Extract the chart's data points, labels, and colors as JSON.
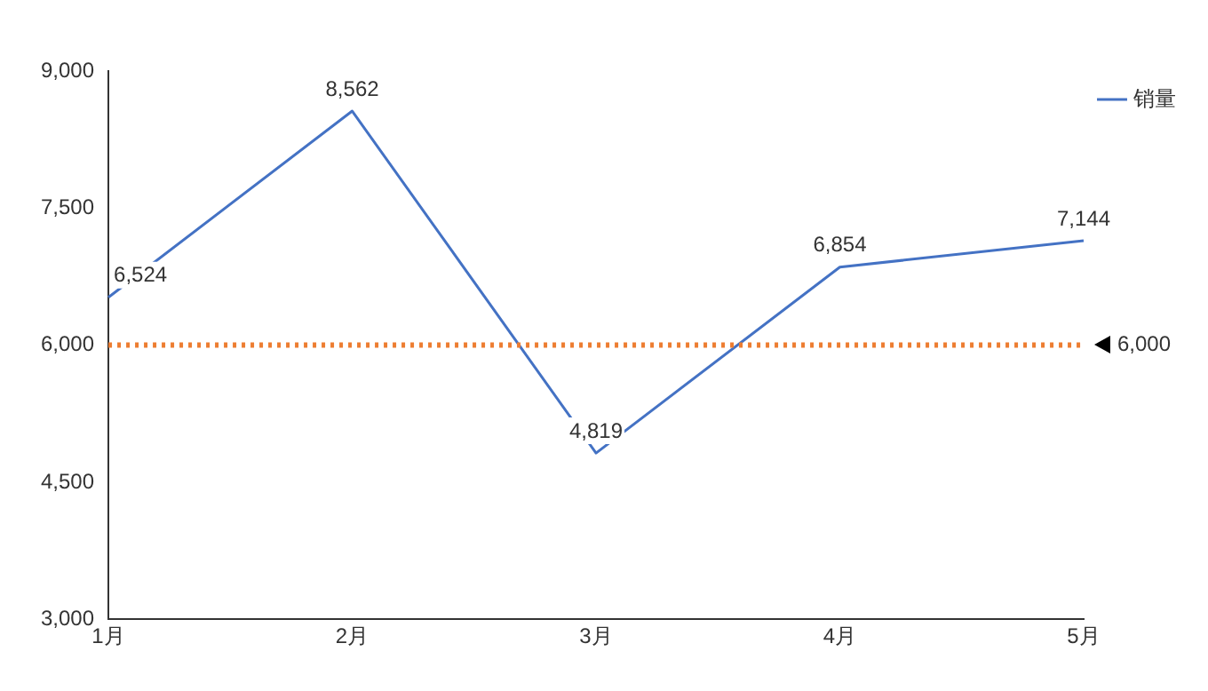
{
  "chart_data": {
    "type": "line",
    "categories": [
      "1月",
      "2月",
      "3月",
      "4月",
      "5月"
    ],
    "series": [
      {
        "name": "销量",
        "color": "#4472c4",
        "values": [
          6524,
          8562,
          4819,
          6854,
          7144
        ],
        "value_labels": [
          "6,524",
          "8,562",
          "4,819",
          "6,854",
          "7,144"
        ]
      }
    ],
    "ylim": [
      3000,
      9000
    ],
    "yticks": [
      {
        "value": 3000,
        "label": "3,000"
      },
      {
        "value": 4500,
        "label": "4,500"
      },
      {
        "value": 6000,
        "label": "6,000"
      },
      {
        "value": 7500,
        "label": "7,500"
      },
      {
        "value": 9000,
        "label": "9,000"
      }
    ],
    "ref_lines": [
      {
        "axis": "y",
        "value": 6000,
        "label": "6,000",
        "color": "#ed7d31",
        "line_style": "dotted"
      }
    ],
    "grid": false,
    "legend": "top right",
    "marker": "none",
    "line_style": "solid"
  }
}
